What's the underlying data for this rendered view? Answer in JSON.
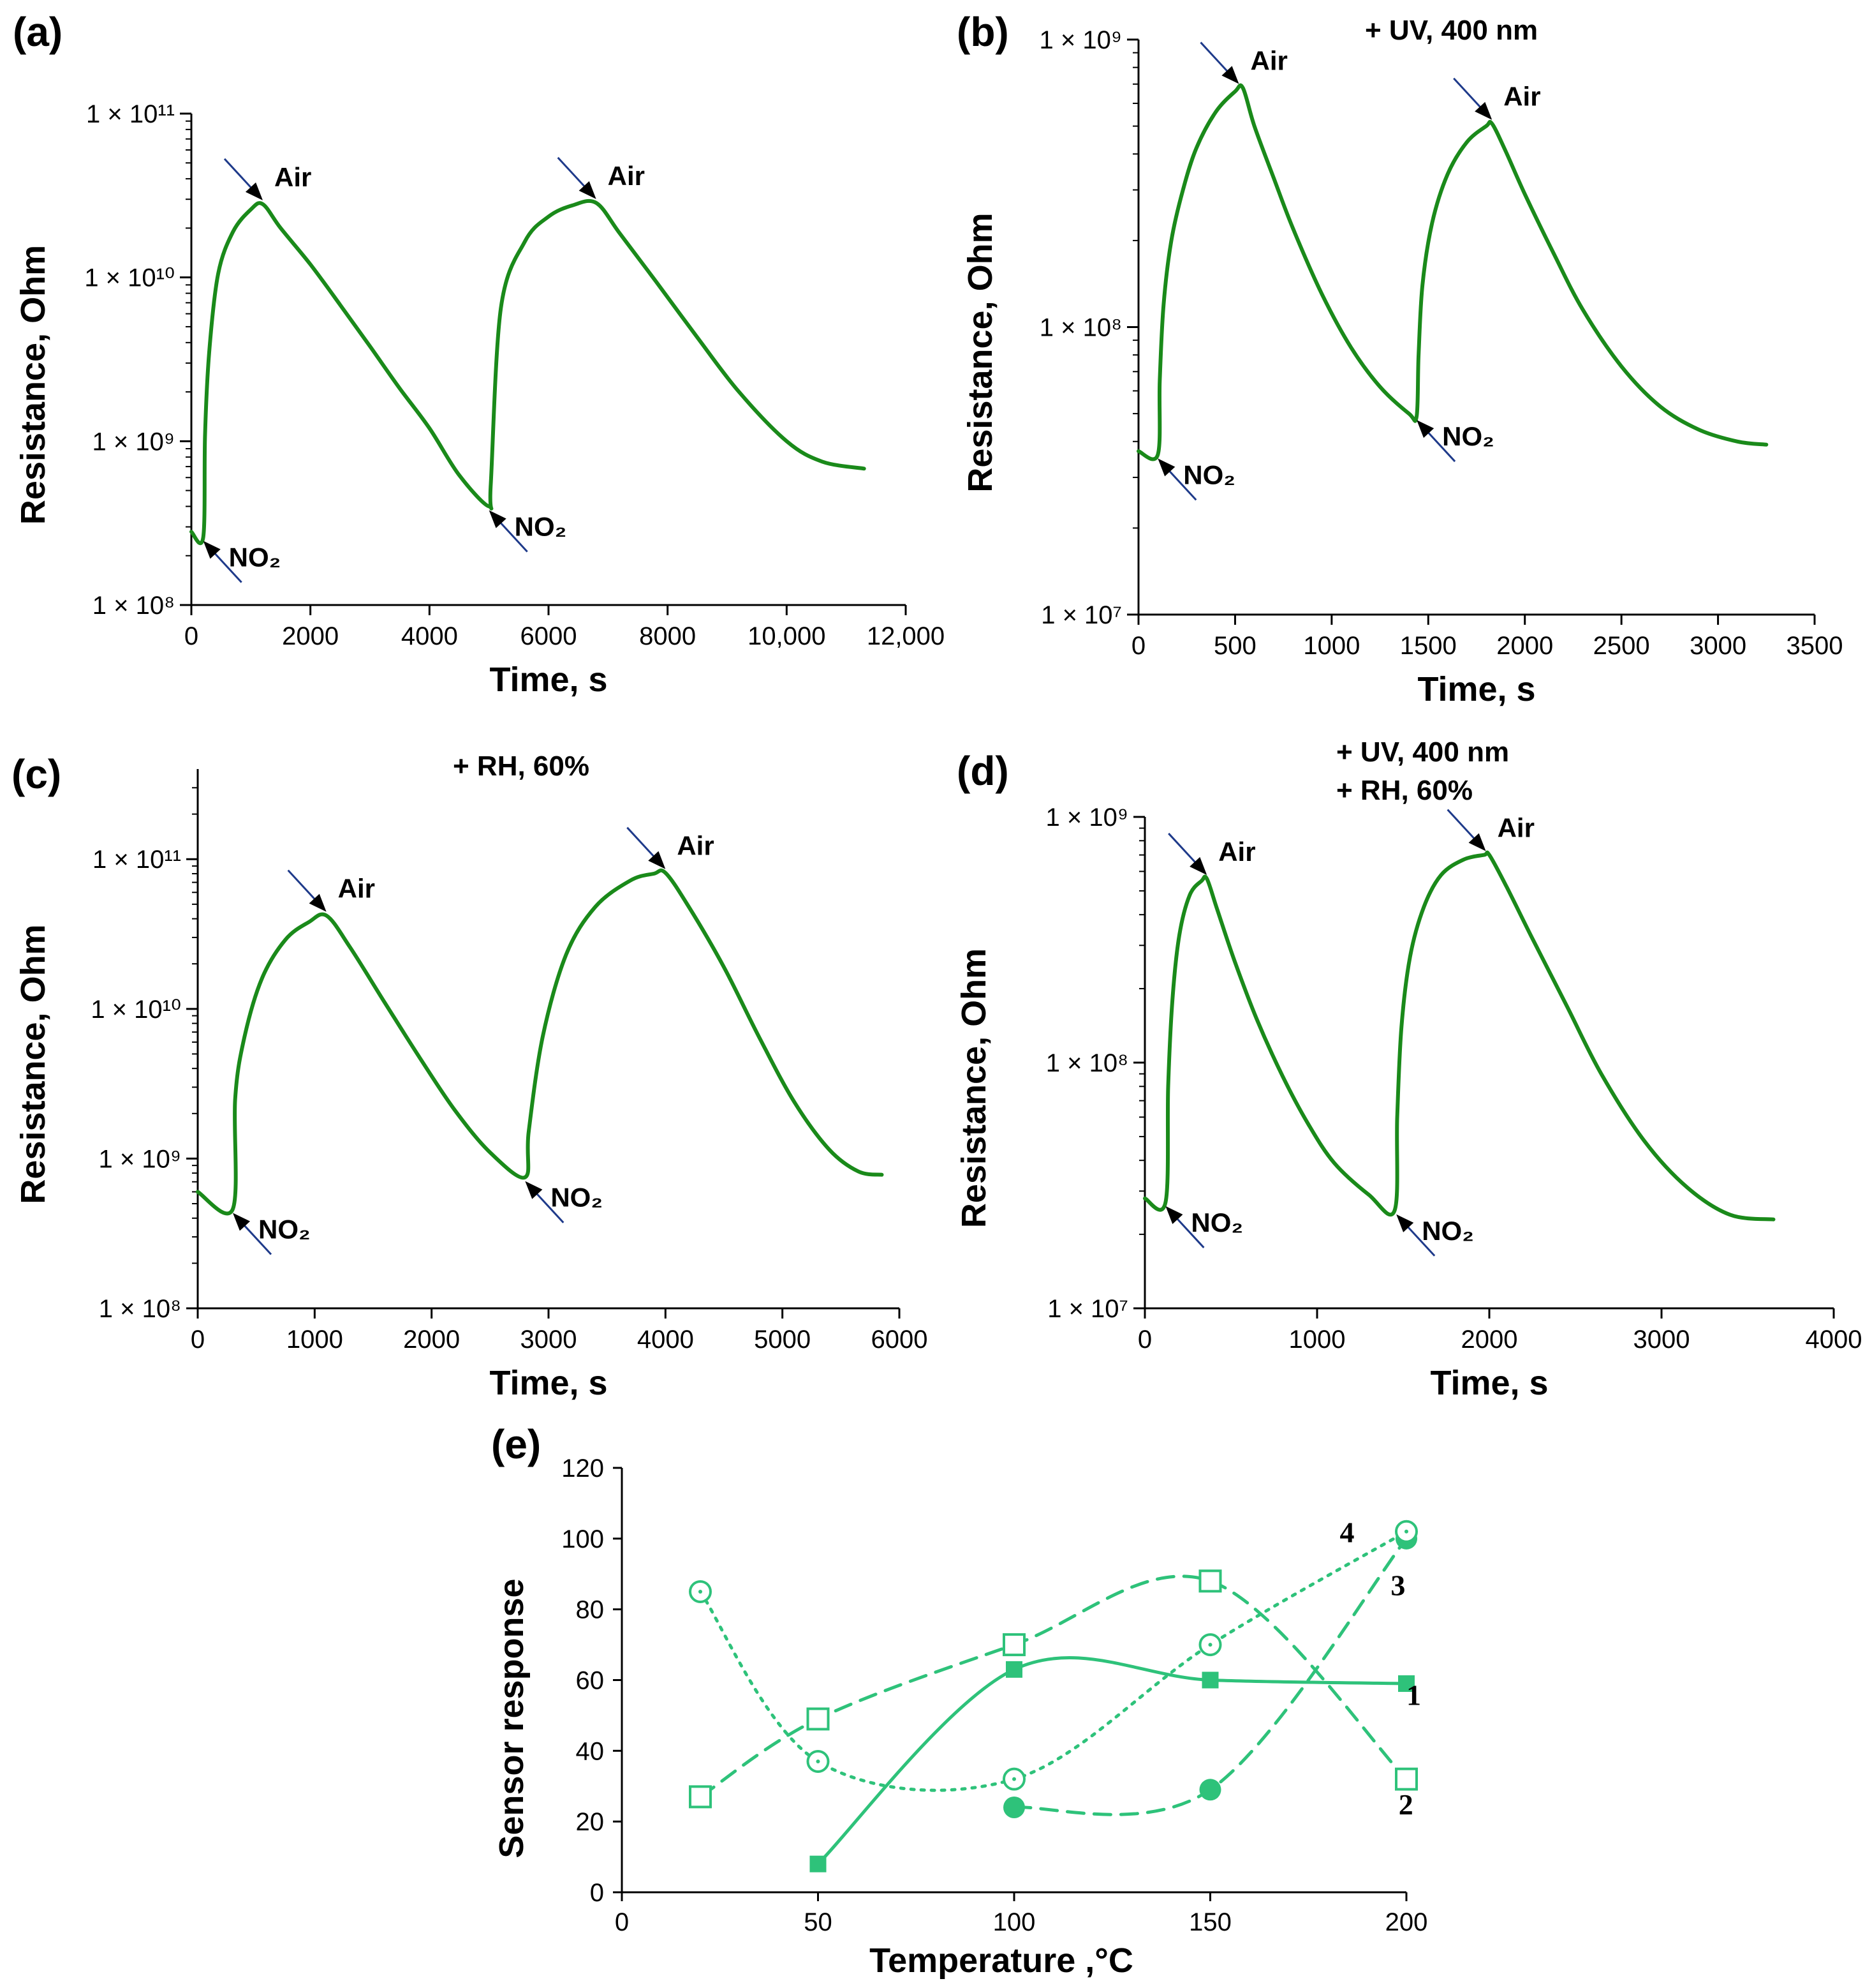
{
  "colors": {
    "curve": "#1a8a1a",
    "series_e": "#2ec27a",
    "axis": "#000000",
    "arrow": "#1e3a8a"
  },
  "chart_data": [
    {
      "id": "a",
      "panel_label": "(a)",
      "type": "line",
      "yscale": "log",
      "xlabel": "Time, s",
      "ylabel": "Resistance, Ohm",
      "xlim": [
        0,
        12000
      ],
      "ylim": [
        100000000.0,
        100000000000.0
      ],
      "xticks": [
        0,
        2000,
        4000,
        6000,
        8000,
        10000,
        12000
      ],
      "xtick_labels": [
        "0",
        "2000",
        "4000",
        "6000",
        "8000",
        "10,000",
        "12,000"
      ],
      "yticks": [
        100000000.0,
        1000000000.0,
        10000000000.0,
        100000000000.0
      ],
      "ytick_labels": [
        "1 × 10⁸",
        "1 × 10⁹",
        "1 × 10¹⁰",
        "1 × 10¹¹"
      ],
      "conditions": [],
      "series": [
        {
          "name": "resistance",
          "x": [
            0,
            200,
            230,
            300,
            450,
            700,
            1000,
            1200,
            1500,
            2000,
            2500,
            3000,
            3500,
            4000,
            4500,
            5000,
            5030,
            5200,
            5600,
            6000,
            6400,
            6800,
            7200,
            7800,
            8500,
            9200,
            10000,
            10600,
            11300
          ],
          "y": [
            280000000.0,
            260000000.0,
            1100000000.0,
            3500000000.0,
            10500000000.0,
            19000000000.0,
            26000000000.0,
            28000000000.0,
            20000000000.0,
            12000000000.0,
            6800000000.0,
            3800000000.0,
            2100000000.0,
            1200000000.0,
            620000000.0,
            400000000.0,
            550000000.0,
            6500000000.0,
            16500000000.0,
            23500000000.0,
            27500000000.0,
            28500000000.0,
            18500000000.0,
            9500000000.0,
            4300000000.0,
            2000000000.0,
            1000000000.0,
            750000000.0,
            680000000.0
          ]
        }
      ],
      "annotations": [
        {
          "text": "Air",
          "x": 1200,
          "y": 28000000000.0,
          "dir": "above"
        },
        {
          "text": "Air",
          "x": 6800,
          "y": 28500000000.0,
          "dir": "above"
        },
        {
          "text": "NO₂",
          "x": 200,
          "y": 260000000.0,
          "dir": "below"
        },
        {
          "text": "NO₂",
          "x": 5000,
          "y": 400000000.0,
          "dir": "below"
        }
      ]
    },
    {
      "id": "b",
      "panel_label": "(b)",
      "type": "line",
      "yscale": "log",
      "xlabel": "Time, s",
      "ylabel": "Resistance, Ohm",
      "xlim": [
        0,
        3500
      ],
      "ylim": [
        10000000.0,
        1000000000.0
      ],
      "xticks": [
        0,
        500,
        1000,
        1500,
        2000,
        2500,
        3000,
        3500
      ],
      "xtick_labels": [
        "0",
        "500",
        "1000",
        "1500",
        "2000",
        "2500",
        "3000",
        "3500"
      ],
      "yticks": [
        10000000.0,
        100000000.0,
        1000000000.0
      ],
      "ytick_labels": [
        "1 × 10⁷",
        "1 × 10⁸",
        "1 × 10⁹"
      ],
      "conditions": [
        "+ UV, 400 nm"
      ],
      "series": [
        {
          "name": "resistance",
          "x": [
            0,
            100,
            110,
            130,
            170,
            230,
            300,
            400,
            500,
            540,
            600,
            700,
            800,
            950,
            1100,
            1250,
            1400,
            1440,
            1450,
            1470,
            1520,
            1600,
            1700,
            1800,
            1830,
            1900,
            2000,
            2150,
            2300,
            2500,
            2700,
            2900,
            3100,
            3250
          ],
          "y": [
            37000000.0,
            36000000.0,
            65000000.0,
            120000000.0,
            200000000.0,
            300000000.0,
            420000000.0,
            560000000.0,
            660000000.0,
            680000000.0,
            500000000.0,
            330000000.0,
            220000000.0,
            130000000.0,
            85000000.0,
            62000000.0,
            50000000.0,
            49000000.0,
            80000000.0,
            140000000.0,
            230000000.0,
            340000000.0,
            440000000.0,
            500000000.0,
            510000000.0,
            410000000.0,
            290000000.0,
            180000000.0,
            115000000.0,
            73000000.0,
            53000000.0,
            44000000.0,
            40000000.0,
            39000000.0
          ]
        }
      ],
      "annotations": [
        {
          "text": "Air",
          "x": 520,
          "y": 680000000.0,
          "dir": "above"
        },
        {
          "text": "Air",
          "x": 1830,
          "y": 510000000.0,
          "dir": "above"
        },
        {
          "text": "NO₂",
          "x": 100,
          "y": 36000000.0,
          "dir": "below"
        },
        {
          "text": "NO₂",
          "x": 1440,
          "y": 49000000.0,
          "dir": "below"
        }
      ]
    },
    {
      "id": "c",
      "panel_label": "(c)",
      "type": "line",
      "yscale": "log",
      "xlabel": "Time, s",
      "ylabel": "Resistance, Ohm",
      "xlim": [
        0,
        6000
      ],
      "ylim": [
        100000000.0,
        400000000000.0
      ],
      "xticks": [
        0,
        1000,
        2000,
        3000,
        4000,
        5000,
        6000
      ],
      "xtick_labels": [
        "0",
        "1000",
        "2000",
        "3000",
        "4000",
        "5000",
        "6000"
      ],
      "yticks": [
        100000000.0,
        1000000000.0,
        10000000000.0,
        100000000000.0
      ],
      "ytick_labels": [
        "1 × 10⁸",
        "1 × 10⁹",
        "1 × 10¹⁰",
        "1 × 10¹¹"
      ],
      "conditions": [
        "+ RH, 60%"
      ],
      "series": [
        {
          "name": "resistance",
          "x": [
            0,
            300,
            320,
            400,
            550,
            750,
            950,
            1100,
            1300,
            1600,
            1900,
            2200,
            2500,
            2800,
            2830,
            2950,
            3150,
            3400,
            3700,
            3900,
            4000,
            4200,
            4500,
            4800,
            5100,
            5400,
            5650,
            5850
          ],
          "y": [
            600000000.0,
            460000000.0,
            2500000000.0,
            6500000000.0,
            16000000000.0,
            29000000000.0,
            38000000000.0,
            42000000000.0,
            26000000000.0,
            11000000000.0,
            4700000000.0,
            2100000000.0,
            1100000000.0,
            750000000.0,
            1500000000.0,
            6500000000.0,
            23000000000.0,
            48000000000.0,
            72000000000.0,
            80000000000.0,
            81000000000.0,
            48000000000.0,
            19000000000.0,
            6500000000.0,
            2400000000.0,
            1150000000.0,
            820000000.0,
            780000000.0
          ]
        }
      ],
      "annotations": [
        {
          "text": "Air",
          "x": 1100,
          "y": 42000000000.0,
          "dir": "above"
        },
        {
          "text": "Air",
          "x": 4000,
          "y": 81000000000.0,
          "dir": "above"
        },
        {
          "text": "NO₂",
          "x": 300,
          "y": 460000000.0,
          "dir": "below"
        },
        {
          "text": "NO₂",
          "x": 2800,
          "y": 750000000.0,
          "dir": "below"
        }
      ]
    },
    {
      "id": "d",
      "panel_label": "(d)",
      "type": "line",
      "yscale": "log",
      "xlabel": "Time, s",
      "ylabel": "Resistance, Ohm",
      "xlim": [
        0,
        4000
      ],
      "ylim": [
        10000000.0,
        1000000000.0
      ],
      "xticks": [
        0,
        1000,
        2000,
        3000,
        4000
      ],
      "xtick_labels": [
        "0",
        "1000",
        "2000",
        "3000",
        "4000"
      ],
      "yticks": [
        10000000.0,
        100000000.0,
        1000000000.0
      ],
      "ytick_labels": [
        "1 × 10⁷",
        "1 × 10⁸",
        "1 × 10⁹"
      ],
      "conditions": [
        "+ UV, 400 nm",
        "+ RH, 60%"
      ],
      "series": [
        {
          "name": "resistance",
          "x": [
            0,
            120,
            135,
            160,
            200,
            260,
            330,
            360,
            420,
            520,
            650,
            800,
            950,
            1100,
            1300,
            1450,
            1465,
            1490,
            1540,
            1620,
            1720,
            1850,
            1970,
            2000,
            2100,
            2250,
            2450,
            2650,
            2900,
            3150,
            3400,
            3650
          ],
          "y": [
            28000000.0,
            27000000.0,
            80000000.0,
            180000000.0,
            330000000.0,
            480000000.0,
            550000000.0,
            560000000.0,
            420000000.0,
            260000000.0,
            150000000.0,
            88000000.0,
            56000000.0,
            39000000.0,
            29000000.0,
            25000000.0,
            60000000.0,
            140000000.0,
            270000000.0,
            430000000.0,
            580000000.0,
            670000000.0,
            700000000.0,
            700000000.0,
            520000000.0,
            320000000.0,
            170000000.0,
            90000000.0,
            48000000.0,
            31000000.0,
            24000000.0,
            23000000.0
          ]
        }
      ],
      "annotations": [
        {
          "text": "Air",
          "x": 360,
          "y": 560000000.0,
          "dir": "above"
        },
        {
          "text": "Air",
          "x": 1980,
          "y": 700000000.0,
          "dir": "above"
        },
        {
          "text": "NO₂",
          "x": 120,
          "y": 27000000.0,
          "dir": "below"
        },
        {
          "text": "NO₂",
          "x": 1460,
          "y": 25000000.0,
          "dir": "below"
        }
      ]
    },
    {
      "id": "e",
      "panel_label": "(e)",
      "type": "scatter",
      "yscale": "linear",
      "xlabel": "Temperature ,°C",
      "ylabel": "Sensor response",
      "xlim": [
        0,
        200
      ],
      "ylim": [
        0,
        120
      ],
      "xticks": [
        0,
        50,
        100,
        150,
        200
      ],
      "xtick_labels": [
        "0",
        "50",
        "100",
        "150",
        "200"
      ],
      "yticks": [
        0,
        20,
        40,
        60,
        80,
        100,
        120
      ],
      "ytick_labels": [
        "0",
        "20",
        "40",
        "60",
        "80",
        "100",
        "120"
      ],
      "series": [
        {
          "name": "1",
          "marker": "filled-square",
          "line": "solid",
          "x": [
            50,
            100,
            150,
            200
          ],
          "y": [
            8,
            63,
            60,
            59
          ],
          "label_at": [
            200,
            53
          ]
        },
        {
          "name": "2",
          "marker": "open-square",
          "line": "dashed",
          "x": [
            20,
            50,
            100,
            150,
            200
          ],
          "y": [
            27,
            49,
            70,
            88,
            32
          ],
          "label_at": [
            198,
            22
          ]
        },
        {
          "name": "3",
          "marker": "filled-circle",
          "line": "dashed",
          "x": [
            100,
            150,
            200
          ],
          "y": [
            24,
            29,
            100
          ],
          "label_at": [
            196,
            84
          ]
        },
        {
          "name": "4",
          "marker": "open-circle",
          "line": "dotted",
          "x": [
            20,
            50,
            100,
            150,
            200
          ],
          "y": [
            85,
            37,
            32,
            70,
            102
          ],
          "label_at": [
            183,
            99
          ]
        }
      ]
    }
  ]
}
